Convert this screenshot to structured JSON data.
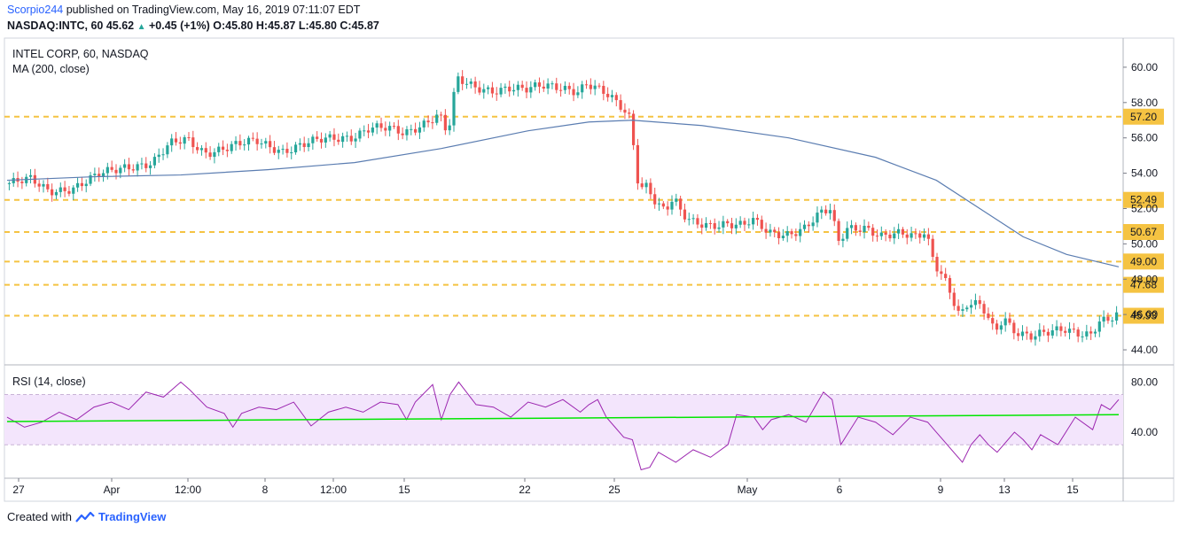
{
  "header": {
    "author": "Scorpio244",
    "published_text": "published on TradingView.com, May 16, 2019 07:11:07 EDT",
    "symbol_line": "NASDAQ:INTC, 60",
    "last": "45.62",
    "change": "+0.45 (+1%)",
    "ohlc": "O:45.80 H:45.87 L:45.80 C:45.87"
  },
  "legend": {
    "title": "INTEL CORP, 60, NASDAQ",
    "ma": "MA (200, close)",
    "rsi": "RSI (14, close)"
  },
  "footer": {
    "created_with": "Created with",
    "brand": "TradingView"
  },
  "colors": {
    "up": "#26a69a",
    "down": "#ef5350",
    "ma": "#5b7db1",
    "level": "#f5c342",
    "rsi": "#9c27b0",
    "rsi_ma": "#00e600",
    "rsi_band": "#f3e5fc"
  },
  "chart_data": [
    {
      "type": "candlestick",
      "title": "INTEL CORP, 60, NASDAQ",
      "ylim": [
        43.2,
        61.6
      ],
      "y_ticks": [
        "60.00",
        "58.00",
        "56.00",
        "54.00",
        "52.00",
        "50.00",
        "48.00",
        "46.00",
        "44.00"
      ],
      "x_ticks": [
        "27",
        "Apr",
        "12:00",
        "8",
        "12:00",
        "15",
        "22",
        "25",
        "May",
        "6",
        "9",
        "13",
        "15"
      ],
      "horizontal_levels": [
        57.2,
        52.49,
        50.67,
        49.0,
        47.68,
        45.93
      ],
      "level_labels": [
        "57.20",
        "52.49",
        "50.67",
        "49.00",
        "47.68",
        "45.93"
      ],
      "price_path": [
        [
          0,
          53.4
        ],
        [
          3,
          53.6
        ],
        [
          5,
          53.0
        ],
        [
          8,
          53.2
        ],
        [
          11,
          53.9
        ],
        [
          14,
          54.4
        ],
        [
          17,
          54.6
        ],
        [
          19,
          55.6
        ],
        [
          21,
          55.9
        ],
        [
          23,
          55.2
        ],
        [
          26,
          55.5
        ],
        [
          29,
          55.8
        ],
        [
          32,
          55.3
        ],
        [
          35,
          55.7
        ],
        [
          37,
          55.9
        ],
        [
          40,
          56.1
        ],
        [
          42,
          56.6
        ],
        [
          44,
          56.5
        ],
        [
          46,
          56.2
        ],
        [
          48,
          56.8
        ],
        [
          50,
          57.4
        ],
        [
          51,
          56.2
        ],
        [
          52,
          59.3
        ],
        [
          54,
          58.8
        ],
        [
          56,
          58.7
        ],
        [
          58,
          58.9
        ],
        [
          60,
          58.7
        ],
        [
          62,
          58.9
        ],
        [
          64,
          58.9
        ],
        [
          66,
          58.7
        ],
        [
          67,
          59.1
        ],
        [
          69,
          58.5
        ],
        [
          71,
          57.7
        ],
        [
          72,
          57.1
        ],
        [
          73,
          53.2
        ],
        [
          74,
          53.4
        ],
        [
          75,
          52.3
        ],
        [
          76,
          51.9
        ],
        [
          77,
          52.5
        ],
        [
          78,
          51.6
        ],
        [
          79,
          51.2
        ],
        [
          81,
          51.1
        ],
        [
          83,
          51.2
        ],
        [
          85,
          51.0
        ],
        [
          86,
          51.3
        ],
        [
          88,
          50.6
        ],
        [
          90,
          50.6
        ],
        [
          92,
          50.9
        ],
        [
          94,
          51.7
        ],
        [
          95,
          51.9
        ],
        [
          96,
          50.1
        ],
        [
          97,
          50.9
        ],
        [
          99,
          51.0
        ],
        [
          101,
          50.4
        ],
        [
          103,
          50.5
        ],
        [
          105,
          50.4
        ],
        [
          106,
          50.8
        ],
        [
          107,
          49.0
        ],
        [
          108,
          48.3
        ],
        [
          110,
          45.8
        ],
        [
          111,
          46.6
        ],
        [
          112,
          46.5
        ],
        [
          113,
          46.1
        ],
        [
          114,
          45.0
        ],
        [
          115,
          46.0
        ],
        [
          116,
          45.2
        ],
        [
          118,
          44.7
        ],
        [
          120,
          44.9
        ],
        [
          122,
          45.2
        ],
        [
          124,
          45.0
        ],
        [
          125,
          44.9
        ],
        [
          126,
          45.6
        ],
        [
          127,
          45.6
        ],
        [
          128,
          45.9
        ]
      ],
      "ma_path": [
        [
          0,
          53.6
        ],
        [
          10,
          53.8
        ],
        [
          20,
          53.9
        ],
        [
          30,
          54.2
        ],
        [
          40,
          54.6
        ],
        [
          50,
          55.4
        ],
        [
          60,
          56.4
        ],
        [
          67,
          56.9
        ],
        [
          72,
          57.0
        ],
        [
          80,
          56.7
        ],
        [
          90,
          56.0
        ],
        [
          100,
          54.9
        ],
        [
          107,
          53.6
        ],
        [
          112,
          52.0
        ],
        [
          117,
          50.4
        ],
        [
          122,
          49.4
        ],
        [
          128,
          48.7
        ]
      ]
    },
    {
      "type": "line",
      "title": "RSI (14, close)",
      "ylim": [
        4,
        93
      ],
      "y_ticks": [
        "80.00",
        "40.00"
      ],
      "band": [
        30,
        70
      ],
      "rsi_ma_endpoints": [
        [
          0,
          48.5
        ],
        [
          128,
          54
        ]
      ],
      "rsi_path": [
        [
          0,
          52
        ],
        [
          2,
          44
        ],
        [
          4,
          48
        ],
        [
          6,
          56
        ],
        [
          8,
          50
        ],
        [
          10,
          60
        ],
        [
          12,
          64
        ],
        [
          14,
          58
        ],
        [
          16,
          72
        ],
        [
          18,
          68
        ],
        [
          20,
          80
        ],
        [
          21,
          74
        ],
        [
          23,
          60
        ],
        [
          25,
          55
        ],
        [
          26,
          44
        ],
        [
          27,
          55
        ],
        [
          29,
          60
        ],
        [
          31,
          58
        ],
        [
          33,
          64
        ],
        [
          35,
          45
        ],
        [
          37,
          56
        ],
        [
          39,
          60
        ],
        [
          41,
          56
        ],
        [
          43,
          64
        ],
        [
          45,
          62
        ],
        [
          46,
          50
        ],
        [
          47,
          64
        ],
        [
          49,
          78
        ],
        [
          50,
          50
        ],
        [
          51,
          70
        ],
        [
          52,
          80
        ],
        [
          54,
          62
        ],
        [
          56,
          60
        ],
        [
          58,
          52
        ],
        [
          60,
          64
        ],
        [
          62,
          60
        ],
        [
          64,
          66
        ],
        [
          66,
          56
        ],
        [
          67,
          62
        ],
        [
          68,
          66
        ],
        [
          69,
          52
        ],
        [
          70,
          44
        ],
        [
          71,
          36
        ],
        [
          72,
          34
        ],
        [
          73,
          10
        ],
        [
          74,
          12
        ],
        [
          75,
          24
        ],
        [
          77,
          16
        ],
        [
          79,
          26
        ],
        [
          81,
          20
        ],
        [
          83,
          30
        ],
        [
          84,
          54
        ],
        [
          86,
          52
        ],
        [
          87,
          42
        ],
        [
          88,
          50
        ],
        [
          90,
          54
        ],
        [
          92,
          48
        ],
        [
          94,
          72
        ],
        [
          95,
          66
        ],
        [
          96,
          30
        ],
        [
          98,
          52
        ],
        [
          100,
          48
        ],
        [
          102,
          38
        ],
        [
          104,
          52
        ],
        [
          106,
          48
        ],
        [
          107,
          40
        ],
        [
          108,
          32
        ],
        [
          110,
          16
        ],
        [
          111,
          30
        ],
        [
          112,
          38
        ],
        [
          113,
          30
        ],
        [
          114,
          24
        ],
        [
          116,
          40
        ],
        [
          117,
          34
        ],
        [
          118,
          26
        ],
        [
          119,
          38
        ],
        [
          121,
          30
        ],
        [
          123,
          52
        ],
        [
          125,
          42
        ],
        [
          126,
          62
        ],
        [
          127,
          58
        ],
        [
          128,
          66
        ]
      ]
    }
  ]
}
